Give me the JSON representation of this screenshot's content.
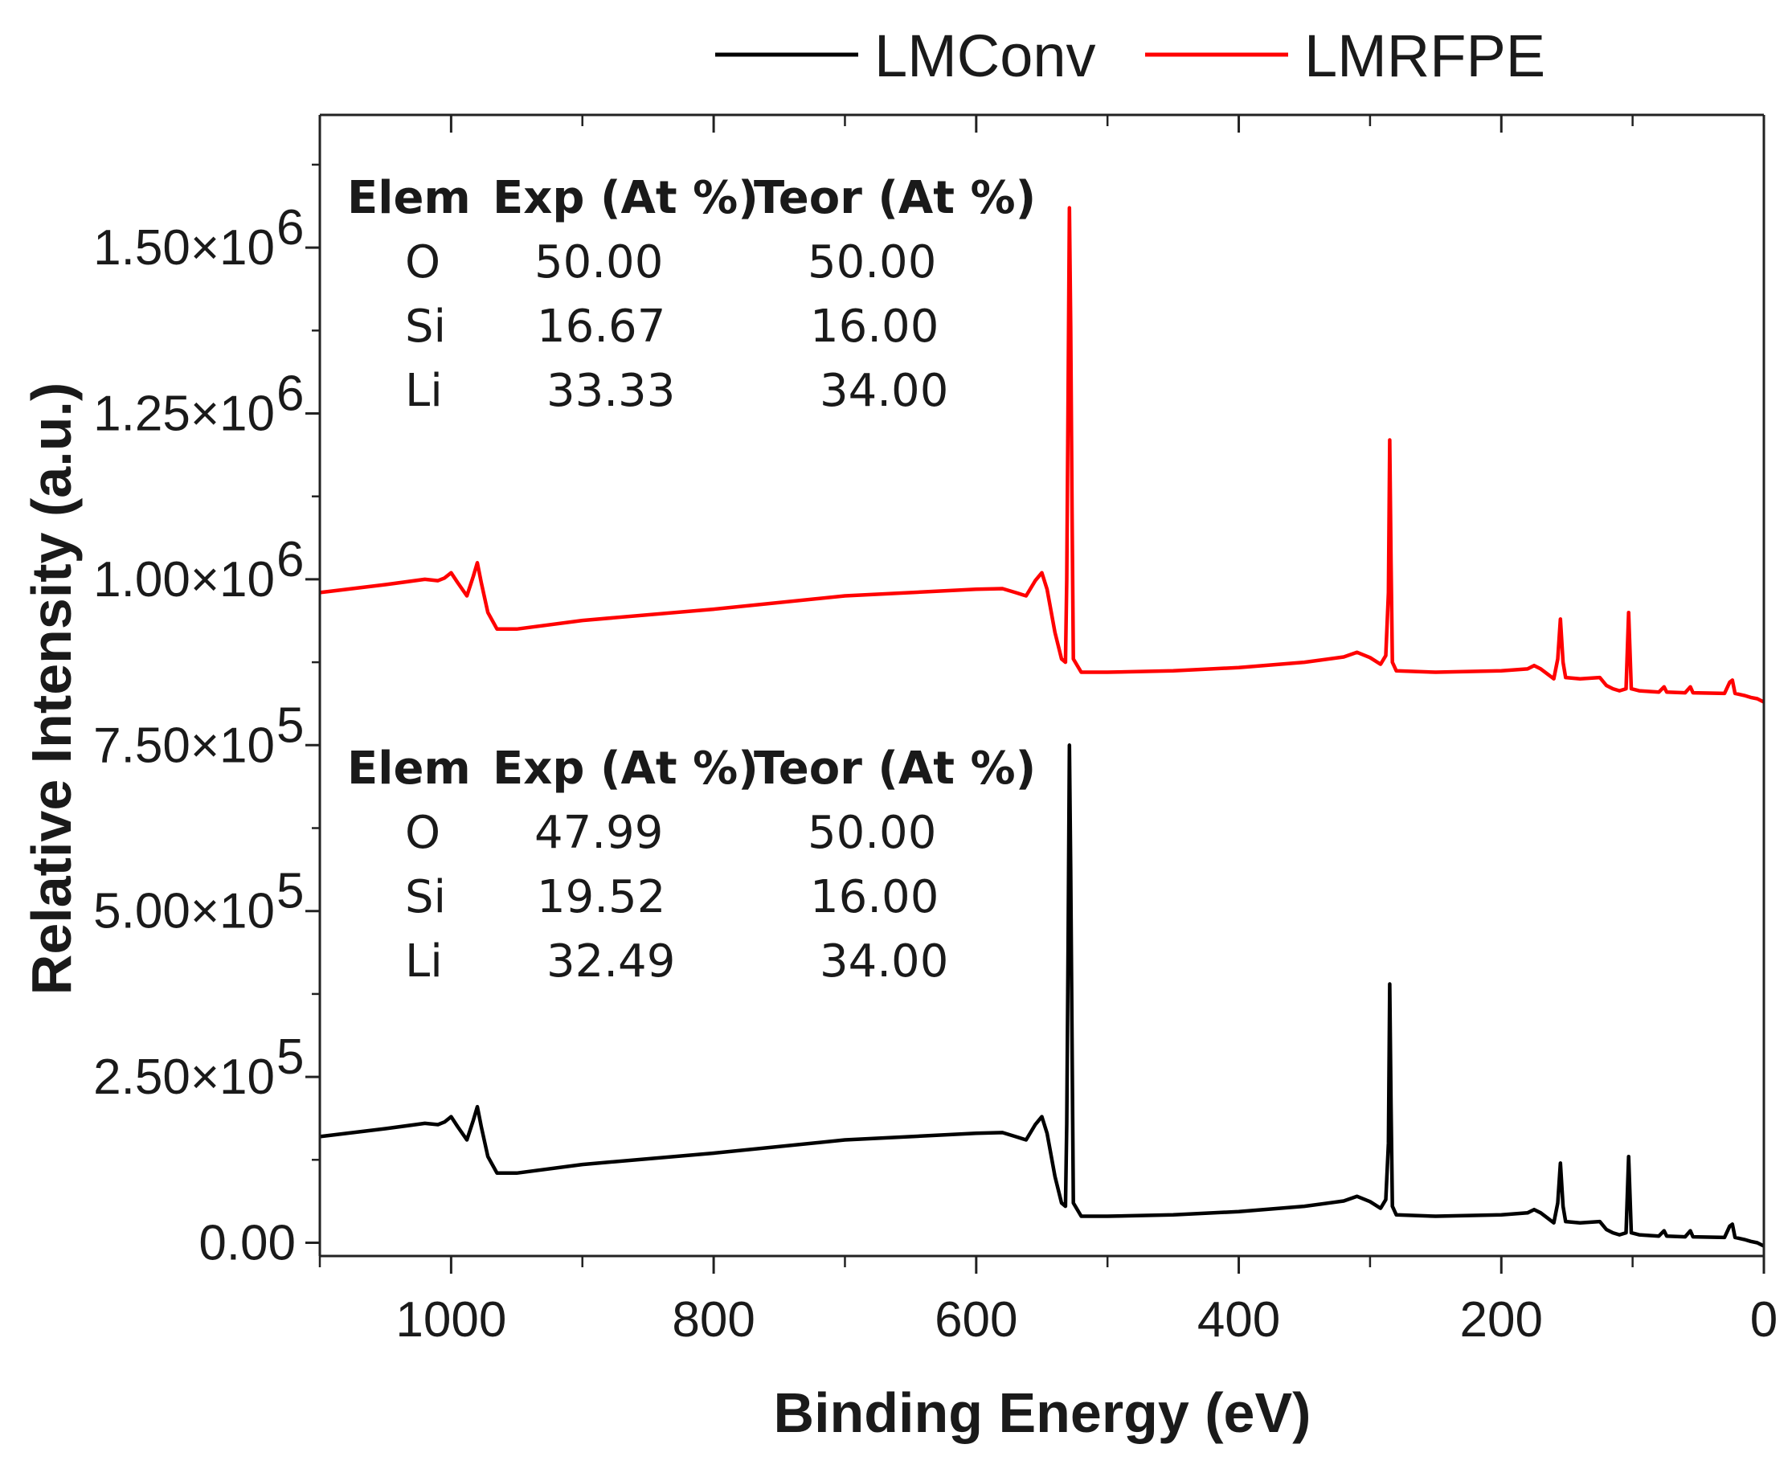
{
  "chart_data": {
    "type": "line",
    "title": "",
    "xlabel": "Binding Energy (eV)",
    "ylabel": "Relative Intensity (a.u.)",
    "xlim": [
      1100,
      0
    ],
    "ylim": [
      -20000,
      1700000
    ],
    "x_ticks": [
      {
        "value": 1000,
        "label": "1000"
      },
      {
        "value": 800,
        "label": "800"
      },
      {
        "value": 600,
        "label": "600"
      },
      {
        "value": 400,
        "label": "400"
      },
      {
        "value": 200,
        "label": "200"
      },
      {
        "value": 0,
        "label": "0"
      }
    ],
    "y_ticks": [
      {
        "value": 0,
        "label": "0.00"
      },
      {
        "value": 250000,
        "label": "2.50×10",
        "exp": "5"
      },
      {
        "value": 500000,
        "label": "5.00×10",
        "exp": "5"
      },
      {
        "value": 750000,
        "label": "7.50×10",
        "exp": "5"
      },
      {
        "value": 1000000,
        "label": "1.00×10",
        "exp": "6"
      },
      {
        "value": 1250000,
        "label": "1.25×10",
        "exp": "6"
      },
      {
        "value": 1500000,
        "label": "1.50×10",
        "exp": "6"
      }
    ],
    "legend": {
      "position": "top-center"
    },
    "series": [
      {
        "name": "LMConv",
        "color": "#000000",
        "points": [
          [
            1100,
            160000
          ],
          [
            1050,
            172000
          ],
          [
            1020,
            180000
          ],
          [
            1010,
            178000
          ],
          [
            1005,
            182000
          ],
          [
            1000,
            190000
          ],
          [
            995,
            175000
          ],
          [
            988,
            155000
          ],
          [
            983,
            185000
          ],
          [
            980,
            205000
          ],
          [
            977,
            175000
          ],
          [
            972,
            130000
          ],
          [
            965,
            105000
          ],
          [
            950,
            105000
          ],
          [
            900,
            118000
          ],
          [
            800,
            135000
          ],
          [
            700,
            155000
          ],
          [
            600,
            165000
          ],
          [
            580,
            166000
          ],
          [
            570,
            160000
          ],
          [
            562,
            155000
          ],
          [
            555,
            178000
          ],
          [
            550,
            190000
          ],
          [
            546,
            165000
          ],
          [
            540,
            100000
          ],
          [
            535,
            60000
          ],
          [
            532,
            55000
          ],
          [
            531,
            180000
          ],
          [
            530,
            450000
          ],
          [
            529,
            750000
          ],
          [
            528,
            560000
          ],
          [
            527,
            300000
          ],
          [
            526,
            60000
          ],
          [
            520,
            40000
          ],
          [
            500,
            40000
          ],
          [
            450,
            42000
          ],
          [
            400,
            47000
          ],
          [
            350,
            55000
          ],
          [
            320,
            63000
          ],
          [
            310,
            70000
          ],
          [
            300,
            62000
          ],
          [
            292,
            52000
          ],
          [
            288,
            65000
          ],
          [
            286,
            150000
          ],
          [
            285,
            390000
          ],
          [
            284,
            210000
          ],
          [
            283,
            55000
          ],
          [
            280,
            42000
          ],
          [
            250,
            40000
          ],
          [
            200,
            42000
          ],
          [
            180,
            45000
          ],
          [
            175,
            50000
          ],
          [
            170,
            45000
          ],
          [
            160,
            30000
          ],
          [
            157,
            60000
          ],
          [
            155,
            120000
          ],
          [
            153,
            55000
          ],
          [
            151,
            32000
          ],
          [
            140,
            30000
          ],
          [
            125,
            32000
          ],
          [
            120,
            20000
          ],
          [
            115,
            15000
          ],
          [
            110,
            12000
          ],
          [
            105,
            15000
          ],
          [
            103,
            130000
          ],
          [
            101,
            15000
          ],
          [
            95,
            12000
          ],
          [
            80,
            10000
          ],
          [
            76,
            18000
          ],
          [
            74,
            10000
          ],
          [
            60,
            9000
          ],
          [
            56,
            18000
          ],
          [
            54,
            9000
          ],
          [
            30,
            8000
          ],
          [
            26,
            25000
          ],
          [
            24,
            28000
          ],
          [
            22,
            8000
          ],
          [
            15,
            5000
          ],
          [
            10,
            2000
          ],
          [
            5,
            0
          ],
          [
            0,
            -5000
          ]
        ]
      },
      {
        "name": "LMRFPE",
        "color": "#ff0000",
        "points": [
          [
            1100,
            980000
          ],
          [
            1050,
            992000
          ],
          [
            1020,
            1000000
          ],
          [
            1010,
            998000
          ],
          [
            1005,
            1002000
          ],
          [
            1000,
            1010000
          ],
          [
            995,
            995000
          ],
          [
            988,
            975000
          ],
          [
            983,
            1005000
          ],
          [
            980,
            1025000
          ],
          [
            977,
            995000
          ],
          [
            972,
            950000
          ],
          [
            965,
            925000
          ],
          [
            950,
            925000
          ],
          [
            900,
            938000
          ],
          [
            800,
            955000
          ],
          [
            700,
            975000
          ],
          [
            600,
            985000
          ],
          [
            580,
            986000
          ],
          [
            570,
            980000
          ],
          [
            562,
            975000
          ],
          [
            555,
            998000
          ],
          [
            550,
            1010000
          ],
          [
            546,
            985000
          ],
          [
            540,
            920000
          ],
          [
            535,
            880000
          ],
          [
            532,
            875000
          ],
          [
            531,
            1000000
          ],
          [
            530,
            1280000
          ],
          [
            529,
            1560000
          ],
          [
            528,
            1380000
          ],
          [
            527,
            1100000
          ],
          [
            526,
            880000
          ],
          [
            520,
            860000
          ],
          [
            500,
            860000
          ],
          [
            450,
            862000
          ],
          [
            400,
            867000
          ],
          [
            350,
            875000
          ],
          [
            320,
            883000
          ],
          [
            310,
            890000
          ],
          [
            300,
            882000
          ],
          [
            292,
            872000
          ],
          [
            288,
            885000
          ],
          [
            286,
            980000
          ],
          [
            285,
            1210000
          ],
          [
            284,
            1030000
          ],
          [
            283,
            875000
          ],
          [
            280,
            862000
          ],
          [
            250,
            860000
          ],
          [
            200,
            862000
          ],
          [
            180,
            865000
          ],
          [
            175,
            870000
          ],
          [
            170,
            865000
          ],
          [
            160,
            850000
          ],
          [
            157,
            880000
          ],
          [
            155,
            940000
          ],
          [
            153,
            875000
          ],
          [
            151,
            852000
          ],
          [
            140,
            850000
          ],
          [
            125,
            852000
          ],
          [
            120,
            840000
          ],
          [
            115,
            835000
          ],
          [
            110,
            832000
          ],
          [
            105,
            835000
          ],
          [
            103,
            950000
          ],
          [
            101,
            835000
          ],
          [
            95,
            832000
          ],
          [
            80,
            830000
          ],
          [
            76,
            838000
          ],
          [
            74,
            830000
          ],
          [
            60,
            829000
          ],
          [
            56,
            838000
          ],
          [
            54,
            829000
          ],
          [
            30,
            828000
          ],
          [
            26,
            845000
          ],
          [
            24,
            848000
          ],
          [
            22,
            828000
          ],
          [
            15,
            825000
          ],
          [
            10,
            822000
          ],
          [
            5,
            820000
          ],
          [
            0,
            815000
          ]
        ]
      }
    ],
    "tables": [
      {
        "series": "LMRFPE",
        "headers": [
          "Elem",
          "Exp (At %)",
          "Teor (At %)"
        ],
        "rows": [
          [
            "O",
            "50.00",
            "50.00"
          ],
          [
            "Si",
            "16.67",
            "16.00"
          ],
          [
            "Li",
            "33.33",
            "34.00"
          ]
        ]
      },
      {
        "series": "LMConv",
        "headers": [
          "Elem",
          "Exp (At %)",
          "Teor (At %)"
        ],
        "rows": [
          [
            "O",
            "47.99",
            "50.00"
          ],
          [
            "Si",
            "19.52",
            "16.00"
          ],
          [
            "Li",
            "32.49",
            "34.00"
          ]
        ]
      }
    ]
  }
}
